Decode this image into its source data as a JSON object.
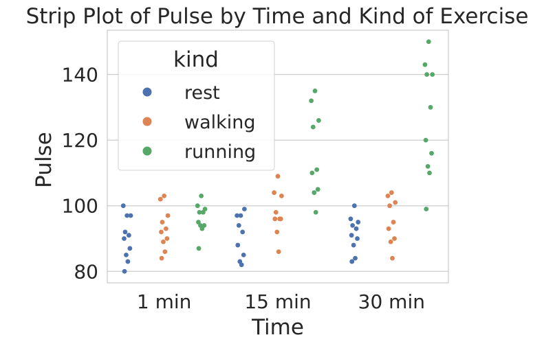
{
  "chart_data": {
    "type": "scatter",
    "subtype": "strip",
    "title": "Strip Plot of Pulse by Time and Kind of Exercise",
    "xlabel": "Time",
    "ylabel": "Pulse",
    "categories": [
      "1 min",
      "15 min",
      "30 min"
    ],
    "ylim": [
      76.5,
      153.5
    ],
    "yticks": [
      80,
      100,
      120,
      140
    ],
    "grid": true,
    "legend": {
      "title": "kind",
      "placement": "top-left"
    },
    "series": [
      {
        "name": "rest",
        "color": "#4c72b0",
        "values": [
          [
            97,
            100,
            97,
            92,
            91,
            90,
            87,
            85,
            83,
            80
          ],
          [
            97,
            97,
            99,
            94,
            92,
            88,
            85,
            83,
            82
          ],
          [
            100,
            96,
            95,
            94,
            93,
            91,
            90,
            88,
            84,
            83
          ]
        ]
      },
      {
        "name": "walking",
        "color": "#dd8452",
        "values": [
          [
            103,
            102,
            97,
            95,
            93,
            92,
            90,
            89,
            86,
            84
          ],
          [
            109,
            104,
            103,
            98,
            96,
            96,
            96,
            92,
            86
          ],
          [
            104,
            103,
            101,
            100,
            95,
            93,
            90,
            89,
            84
          ]
        ]
      },
      {
        "name": "running",
        "color": "#55a868",
        "values": [
          [
            103,
            100,
            99,
            98,
            98,
            95,
            94,
            94,
            93,
            87
          ],
          [
            135,
            132,
            126,
            124,
            111,
            110,
            105,
            104,
            98
          ],
          [
            150,
            143,
            140,
            140,
            130,
            120,
            116,
            112,
            110,
            99
          ]
        ]
      }
    ]
  }
}
